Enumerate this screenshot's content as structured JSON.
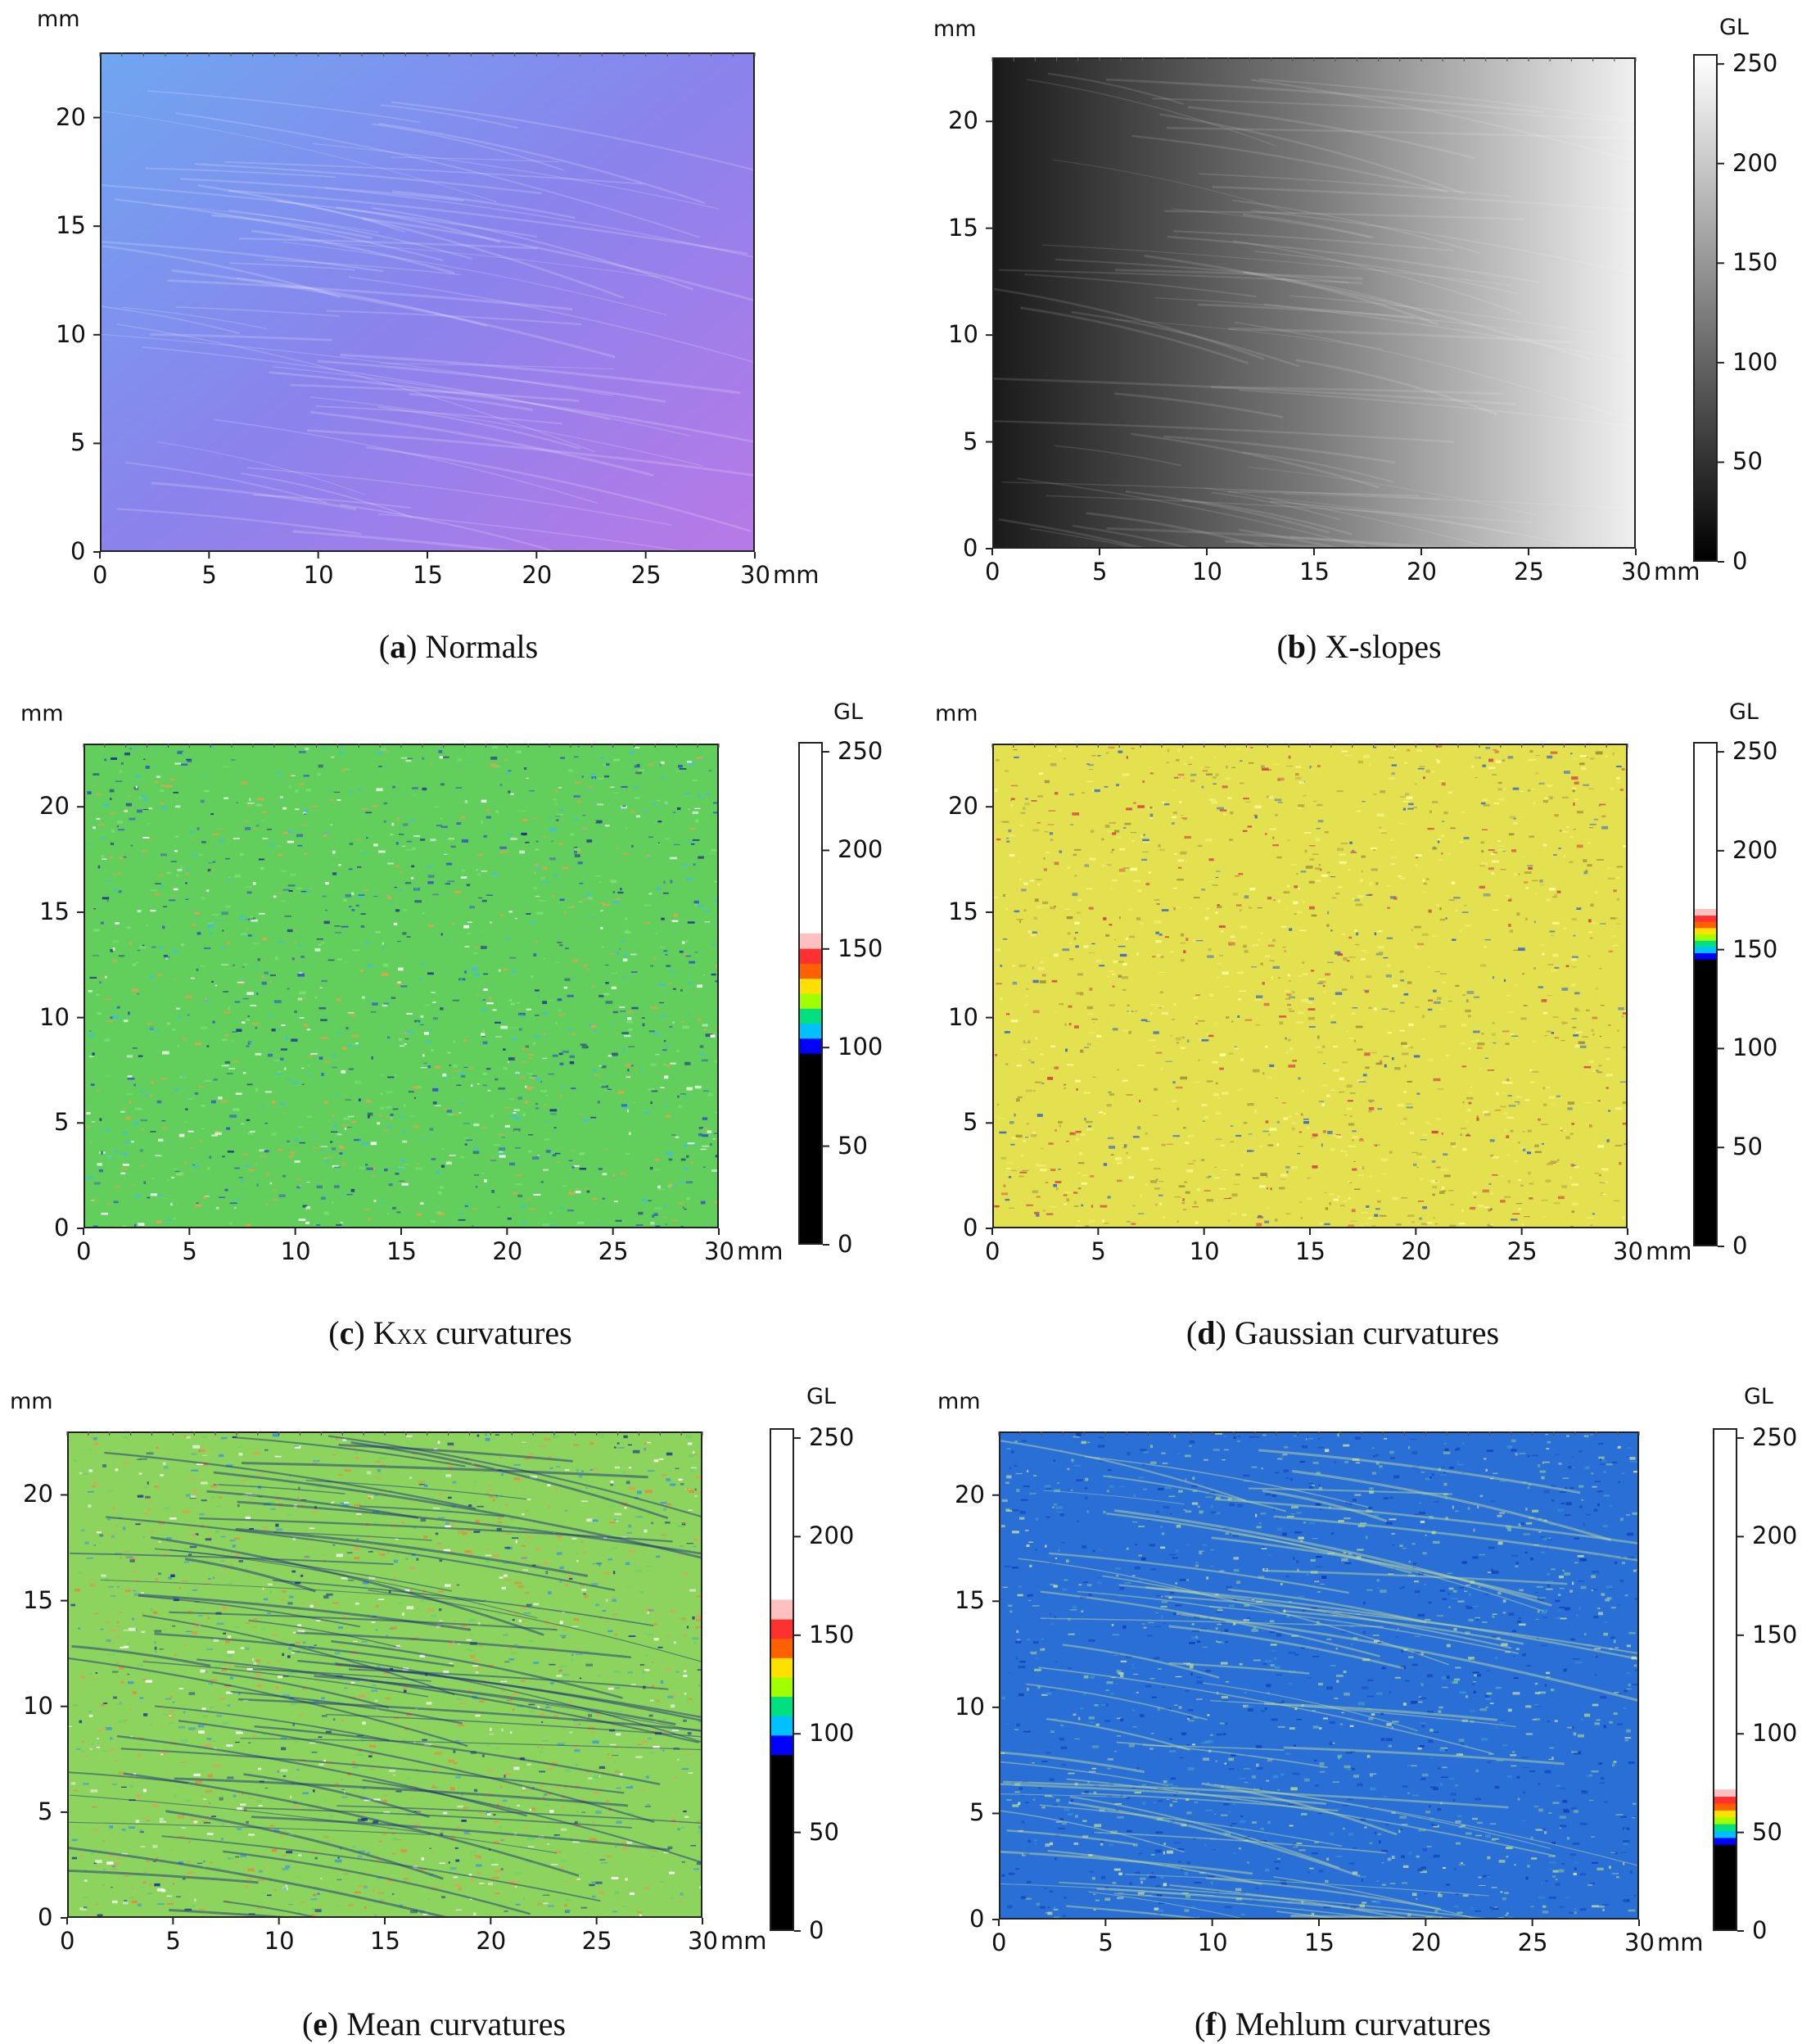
{
  "axes": {
    "x_unit": "mm",
    "y_unit": "mm",
    "x_ticks": [
      "0",
      "5",
      "10",
      "15",
      "20",
      "25",
      "30"
    ],
    "y_ticks": [
      "0",
      "5",
      "10",
      "15",
      "20"
    ],
    "colorbar_unit": "GL",
    "colorbar_ticks": [
      "0",
      "50",
      "100",
      "150",
      "200",
      "250"
    ]
  },
  "panels": [
    {
      "letter": "a",
      "title": "Normals",
      "base_color": "#7b8bea",
      "edge_color": "#b07ae6",
      "has_colorbar": false
    },
    {
      "letter": "b",
      "title": "X-slopes",
      "base_color": "#222222",
      "edge_color": "#eeeeee",
      "has_colorbar": true,
      "colorbar_band": [
        0.0,
        1.0
      ],
      "colorbar_type": "gray"
    },
    {
      "letter": "c",
      "title_main": "K",
      "title_sub": "XX",
      "title": " curvatures",
      "base_color": "#5fcf62",
      "edge_color": "#49c46b",
      "has_colorbar": true,
      "colorbar_band": [
        0.38,
        0.62
      ],
      "colorbar_type": "rainbow"
    },
    {
      "letter": "d",
      "title": "Gaussian curvatures",
      "base_color": "#e6e24a",
      "edge_color": "#dfe043",
      "has_colorbar": true,
      "colorbar_band": [
        0.57,
        0.67
      ],
      "colorbar_type": "rainbow"
    },
    {
      "letter": "e",
      "title": "Mean curvatures",
      "base_color": "#8fd65e",
      "edge_color": "#9bd45a",
      "has_colorbar": true,
      "colorbar_band": [
        0.35,
        0.66
      ],
      "colorbar_type": "rainbow"
    },
    {
      "letter": "f",
      "title": "Mehlum curvatures",
      "base_color": "#2470d8",
      "edge_color": "#3a86d0",
      "has_colorbar": true,
      "colorbar_band": [
        0.17,
        0.28
      ],
      "colorbar_type": "rainbow"
    }
  ]
}
